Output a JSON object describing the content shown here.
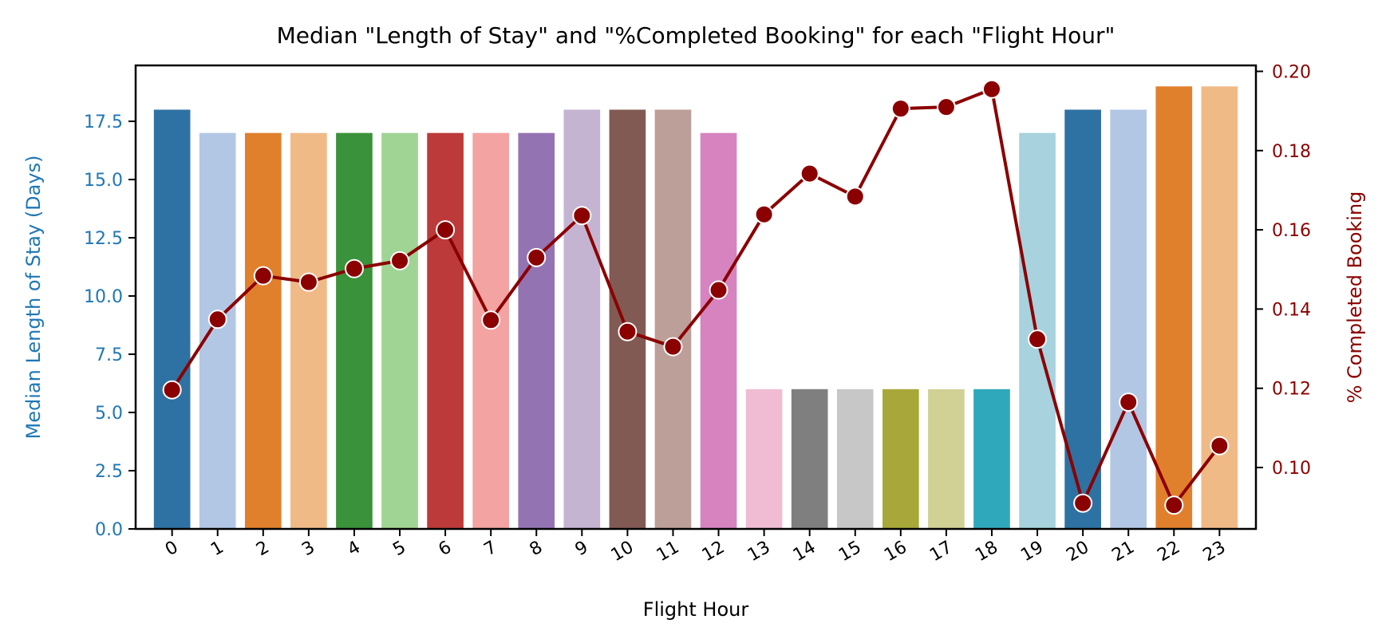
{
  "chart_data": {
    "type": "bar+line",
    "title": "Median \"Length of Stay\" and \"%Completed Booking\" for each \"Flight Hour\"",
    "xlabel": "Flight Hour",
    "ylabel_left": "Median Length of Stay (Days)",
    "ylabel_right": "% Completed Booking",
    "categories": [
      "0",
      "1",
      "2",
      "3",
      "4",
      "5",
      "6",
      "7",
      "8",
      "9",
      "10",
      "11",
      "12",
      "13",
      "14",
      "15",
      "16",
      "17",
      "18",
      "19",
      "20",
      "21",
      "22",
      "23"
    ],
    "bar_series": {
      "name": "",
      "values": [
        18,
        17,
        17,
        17,
        17,
        17,
        17,
        17,
        17,
        18,
        18,
        18,
        17,
        6,
        6,
        6,
        6,
        6,
        6,
        17,
        18,
        18,
        19,
        19
      ],
      "colors": [
        "#2e72a3",
        "#b2c7e4",
        "#e1802c",
        "#f0ba87",
        "#3a923a",
        "#a0d494",
        "#bd3a3a",
        "#f3a3a2",
        "#9473b3",
        "#c4b4d2",
        "#825a54",
        "#bd9f99",
        "#d683c0",
        "#f0bcd4",
        "#7f7f7f",
        "#c7c7c7",
        "#a8a83a",
        "#d1d196",
        "#30a8bb",
        "#a7d2de",
        "#2e72a3",
        "#b2c7e4",
        "#e1802c",
        "#f0ba87"
      ]
    },
    "line_series": {
      "name": "",
      "color": "#8b0000",
      "values": [
        0.1196,
        0.1374,
        0.1484,
        0.1468,
        0.1502,
        0.1522,
        0.16,
        0.1372,
        0.153,
        0.1636,
        0.1343,
        0.1305,
        0.1448,
        0.1639,
        0.1742,
        0.1684,
        0.1906,
        0.191,
        0.1955,
        0.1324,
        0.091,
        0.1165,
        0.0905,
        0.1055
      ]
    },
    "ylim_left": [
      0,
      19.9
    ],
    "ylim_right": [
      0.0845,
      0.2015
    ],
    "yticks_left": [
      "0.0",
      "2.5",
      "5.0",
      "7.5",
      "10.0",
      "12.5",
      "15.0",
      "17.5"
    ],
    "yticks_right": [
      "0.10",
      "0.12",
      "0.14",
      "0.16",
      "0.18",
      "0.20"
    ],
    "left_axis_color": "#1f77b4",
    "right_axis_color": "#8b0000",
    "grid": false
  }
}
